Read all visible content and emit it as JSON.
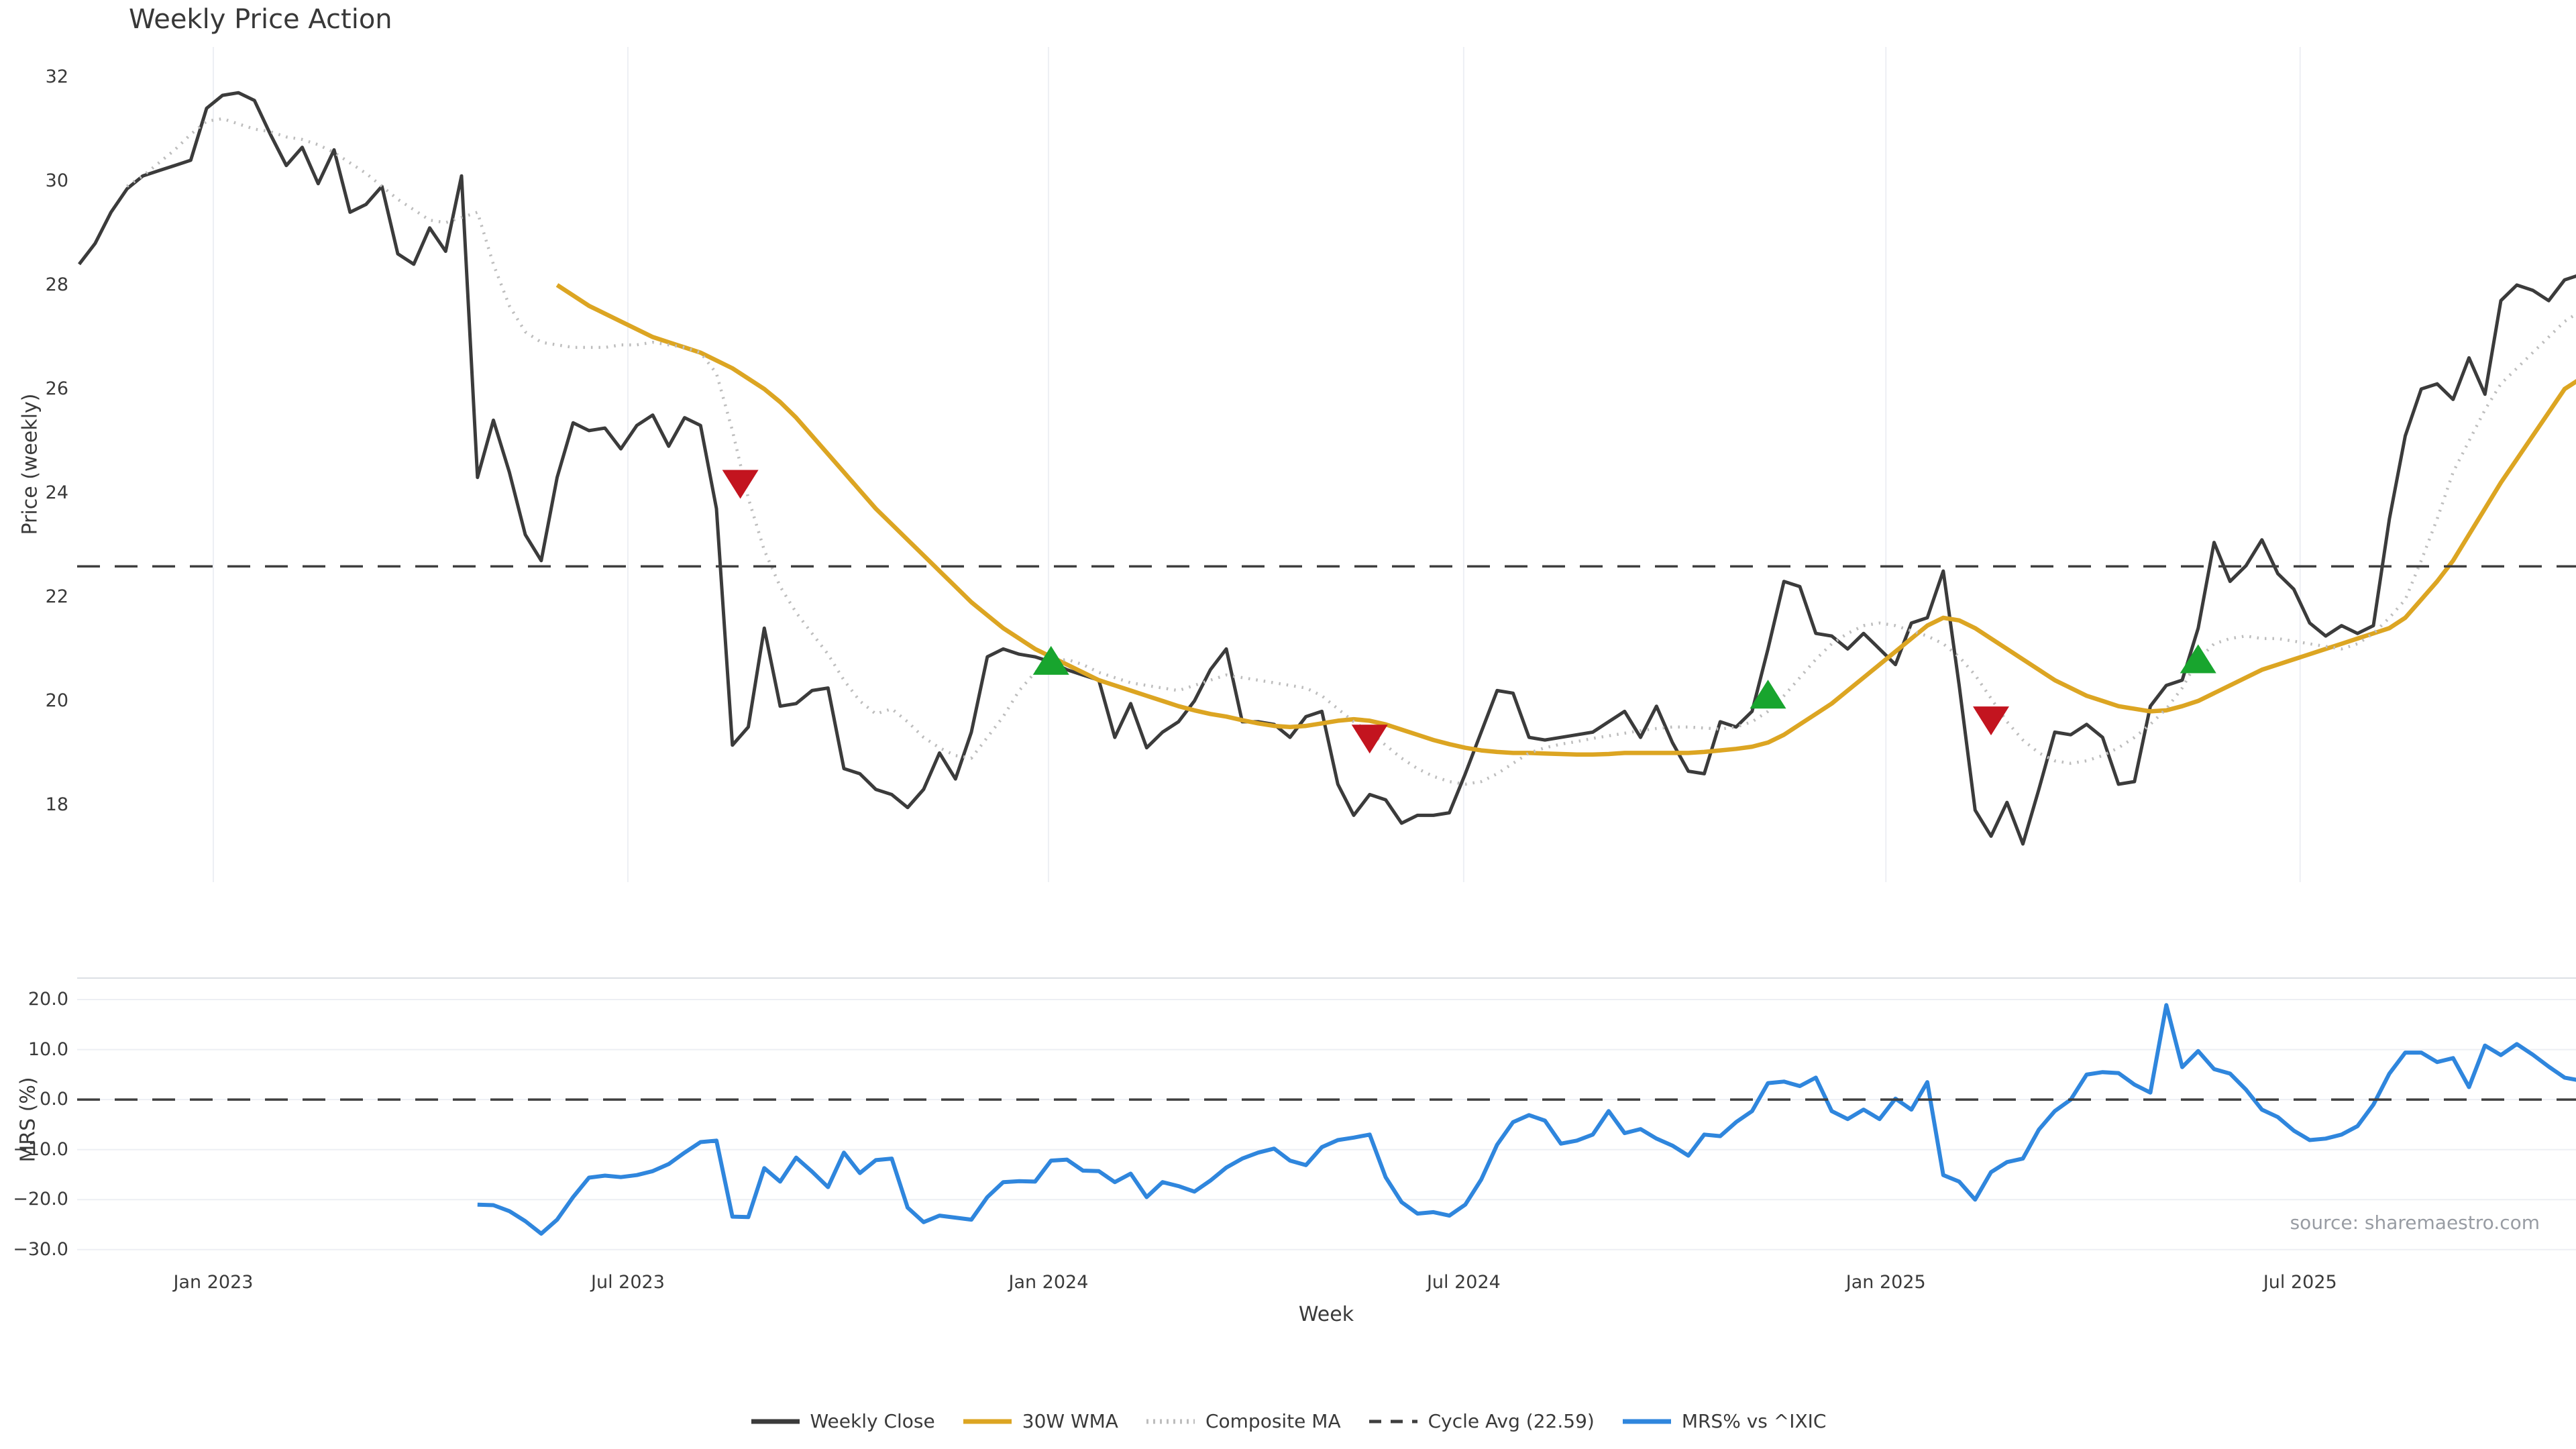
{
  "title": "Weekly Price Action",
  "source": "source: sharemaestro.com",
  "colors": {
    "weekly_close": "#3b3b3b",
    "wma_30w": "#dca522",
    "composite_ma": "#bdbdbd",
    "cycle_avg": "#3f3f3f",
    "mrs": "#2f86dd",
    "buy_marker": "#18a52e",
    "sell_marker": "#c3141f",
    "grid": "#edeff4",
    "mrs_top_border": "#dcdfe4",
    "tick_text": "#3a3a3a",
    "source_text": "#989ca3"
  },
  "legend": {
    "items": [
      {
        "id": "weekly-close",
        "label": "Weekly Close",
        "style": "solid",
        "color": "#3b3b3b"
      },
      {
        "id": "wma-30w",
        "label": "30W WMA",
        "style": "solid",
        "color": "#dca522"
      },
      {
        "id": "composite-ma",
        "label": "Composite MA",
        "style": "dotted",
        "color": "#bdbdbd"
      },
      {
        "id": "cycle-avg",
        "label": "Cycle Avg (22.59)",
        "style": "dashed",
        "color": "#3f3f3f"
      },
      {
        "id": "mrs",
        "label": "MRS% vs ^IXIC",
        "style": "solid",
        "color": "#2f86dd"
      }
    ]
  },
  "x_axis": {
    "label": "Week",
    "week_min": -0.2,
    "week_max": 156.8,
    "ticks": [
      {
        "label": "Jan 2023",
        "week": 8.42
      },
      {
        "label": "Jul 2023",
        "week": 34.44
      },
      {
        "label": "Jan 2024",
        "week": 60.84
      },
      {
        "label": "Jul 2024",
        "week": 86.9
      },
      {
        "label": "Jan 2025",
        "week": 113.4
      },
      {
        "label": "Jul 2025",
        "week": 139.4
      }
    ]
  },
  "chart_data": [
    {
      "type": "line",
      "panel": "price",
      "title": "Weekly Price Action",
      "ylabel": "Price (weekly)",
      "ylim": [
        16.5,
        32.6
      ],
      "grid": "vertical",
      "legend_position": "bottom-center",
      "yticks": [
        {
          "label": "32",
          "value": 32
        },
        {
          "label": "30",
          "value": 30
        },
        {
          "label": "28",
          "value": 28
        },
        {
          "label": "26",
          "value": 26
        },
        {
          "label": "24",
          "value": 24
        },
        {
          "label": "22",
          "value": 22
        },
        {
          "label": "20",
          "value": 20
        },
        {
          "label": "18",
          "value": 18
        }
      ],
      "series": [
        {
          "name": "Weekly Close",
          "color": "#3b3b3b",
          "style": "solid",
          "width": 5,
          "start_week": 0,
          "values": [
            28.4,
            28.8,
            29.4,
            29.85,
            30.1,
            30.2,
            30.3,
            30.4,
            31.4,
            31.65,
            31.7,
            31.55,
            30.9,
            30.3,
            30.65,
            29.95,
            30.6,
            29.4,
            29.55,
            29.9,
            28.6,
            28.4,
            29.1,
            28.65,
            30.1,
            24.3,
            25.4,
            24.4,
            23.2,
            22.7,
            24.3,
            25.35,
            25.2,
            25.25,
            24.85,
            25.3,
            25.5,
            24.9,
            25.45,
            25.3,
            23.7,
            19.15,
            19.5,
            21.4,
            19.9,
            19.95,
            20.2,
            20.25,
            18.7,
            18.6,
            18.3,
            18.2,
            17.95,
            18.3,
            19.0,
            18.5,
            19.4,
            20.85,
            21.0,
            20.9,
            20.85,
            20.75,
            20.6,
            20.5,
            20.4,
            19.3,
            19.95,
            19.1,
            19.4,
            19.6,
            20.0,
            20.6,
            21.0,
            19.6,
            19.6,
            19.55,
            19.3,
            19.7,
            19.8,
            18.4,
            17.8,
            18.2,
            18.1,
            17.65,
            17.8,
            17.8,
            17.85,
            18.6,
            19.4,
            20.2,
            20.15,
            19.3,
            19.25,
            19.3,
            19.35,
            19.4,
            19.6,
            19.8,
            19.3,
            19.9,
            19.2,
            18.65,
            18.6,
            19.6,
            19.5,
            19.8,
            21.0,
            22.3,
            22.2,
            21.3,
            21.25,
            21.0,
            21.3,
            21.0,
            20.7,
            21.5,
            21.6,
            22.5,
            20.3,
            17.9,
            17.4,
            18.05,
            17.25,
            18.3,
            19.4,
            19.35,
            19.55,
            19.3,
            18.4,
            18.45,
            19.9,
            20.3,
            20.4,
            21.4,
            23.05,
            22.3,
            22.6,
            23.1,
            22.45,
            22.15,
            21.5,
            21.25,
            21.45,
            21.3,
            21.45,
            23.5,
            25.1,
            26.0,
            26.1,
            25.8,
            26.6,
            25.9,
            27.7,
            28.0,
            27.9,
            27.7,
            28.1,
            28.2
          ]
        },
        {
          "name": "30W WMA",
          "color": "#dca522",
          "style": "solid",
          "width": 6.5,
          "start_week": 30,
          "values": [
            28.0,
            27.8,
            27.6,
            27.45,
            27.3,
            27.15,
            27.0,
            26.9,
            26.8,
            26.7,
            26.55,
            26.4,
            26.2,
            26.0,
            25.75,
            25.45,
            25.1,
            24.75,
            24.4,
            24.05,
            23.7,
            23.4,
            23.1,
            22.8,
            22.5,
            22.2,
            21.9,
            21.65,
            21.4,
            21.2,
            21.0,
            20.85,
            20.7,
            20.55,
            20.4,
            20.3,
            20.2,
            20.1,
            20.0,
            19.9,
            19.82,
            19.75,
            19.7,
            19.63,
            19.57,
            19.52,
            19.5,
            19.52,
            19.57,
            19.62,
            19.65,
            19.62,
            19.55,
            19.45,
            19.35,
            19.25,
            19.17,
            19.1,
            19.05,
            19.02,
            19.0,
            19.0,
            18.99,
            18.98,
            18.97,
            18.97,
            18.98,
            19.0,
            19.0,
            19.0,
            19.0,
            19.0,
            19.02,
            19.05,
            19.08,
            19.12,
            19.2,
            19.35,
            19.55,
            19.75,
            19.95,
            20.2,
            20.45,
            20.7,
            20.95,
            21.2,
            21.45,
            21.6,
            21.55,
            21.4,
            21.2,
            21.0,
            20.8,
            20.6,
            20.4,
            20.25,
            20.1,
            20.0,
            19.9,
            19.85,
            19.8,
            19.82,
            19.9,
            20.0,
            20.15,
            20.3,
            20.45,
            20.6,
            20.7,
            20.8,
            20.9,
            21.0,
            21.1,
            21.2,
            21.3,
            21.4,
            21.6,
            21.95,
            22.3,
            22.7,
            23.2,
            23.7,
            24.2,
            24.65,
            25.1,
            25.55,
            26.0,
            26.2
          ]
        },
        {
          "name": "Composite MA",
          "color": "#bdbdbd",
          "style": "dotted",
          "width": 4.5,
          "start_week": 3,
          "values": [
            29.9,
            30.1,
            30.35,
            30.6,
            30.9,
            31.15,
            31.2,
            31.1,
            31.0,
            30.95,
            30.85,
            30.8,
            30.7,
            30.55,
            30.35,
            30.15,
            29.9,
            29.65,
            29.45,
            29.25,
            29.2,
            29.3,
            29.4,
            28.4,
            27.6,
            27.1,
            26.9,
            26.85,
            26.8,
            26.8,
            26.8,
            26.85,
            26.85,
            26.9,
            26.85,
            26.8,
            26.7,
            26.3,
            25.2,
            23.9,
            22.9,
            22.2,
            21.7,
            21.3,
            20.9,
            20.4,
            20.0,
            19.75,
            19.85,
            19.6,
            19.3,
            19.1,
            18.95,
            18.9,
            19.3,
            19.7,
            20.2,
            20.55,
            20.75,
            20.8,
            20.7,
            20.55,
            20.45,
            20.35,
            20.3,
            20.25,
            20.2,
            20.3,
            20.4,
            20.5,
            20.45,
            20.4,
            20.35,
            20.3,
            20.25,
            20.1,
            19.85,
            19.6,
            19.4,
            19.15,
            18.9,
            18.7,
            18.55,
            18.45,
            18.4,
            18.45,
            18.6,
            18.8,
            19.0,
            19.1,
            19.17,
            19.22,
            19.28,
            19.33,
            19.38,
            19.43,
            19.47,
            19.5,
            19.5,
            19.48,
            19.46,
            19.5,
            19.6,
            19.8,
            20.1,
            20.45,
            20.8,
            21.1,
            21.3,
            21.45,
            21.5,
            21.45,
            21.35,
            21.25,
            21.1,
            20.85,
            20.5,
            20.05,
            19.6,
            19.25,
            19.0,
            18.85,
            18.8,
            18.85,
            18.95,
            19.1,
            19.3,
            19.55,
            19.85,
            20.25,
            20.8,
            21.1,
            21.2,
            21.25,
            21.2,
            21.2,
            21.15,
            21.1,
            21.05,
            21.0,
            21.1,
            21.3,
            21.6,
            21.95,
            22.7,
            23.5,
            24.4,
            25.0,
            25.6,
            26.1,
            26.4,
            26.7,
            27.0,
            27.3,
            27.5
          ]
        },
        {
          "name": "Cycle Avg",
          "color": "#3f3f3f",
          "style": "dashed",
          "width": 3.5,
          "constant": 22.59
        }
      ],
      "markers": {
        "buy": {
          "shape": "triangle-up",
          "color": "#18a52e",
          "points": [
            {
              "week": 61,
              "price": 20.75
            },
            {
              "week": 106,
              "price": 20.1
            },
            {
              "week": 133,
              "price": 20.78
            }
          ]
        },
        "sell": {
          "shape": "triangle-down",
          "color": "#c3141f",
          "points": [
            {
              "week": 41.5,
              "price": 24.2
            },
            {
              "week": 81,
              "price": 19.3
            },
            {
              "week": 120,
              "price": 19.65
            }
          ]
        }
      }
    },
    {
      "type": "line",
      "panel": "mrs",
      "ylabel": "MRS (%)",
      "xlabel": "Week",
      "ylim": [
        -32.3,
        24.3
      ],
      "grid": "horizontal",
      "yticks": [
        {
          "label": "20.0",
          "value": 20
        },
        {
          "label": "10.0",
          "value": 10
        },
        {
          "label": "0.0",
          "value": 0
        },
        {
          "label": "−10.0",
          "value": -10
        },
        {
          "label": "−20.0",
          "value": -20
        },
        {
          "label": "−30.0",
          "value": -30
        }
      ],
      "series": [
        {
          "name": "MRS% vs ^IXIC",
          "color": "#2f86dd",
          "style": "solid",
          "width": 6,
          "start_week": 25,
          "values": [
            -21.0,
            -21.1,
            -22.3,
            -24.3,
            -26.8,
            -24.0,
            -19.5,
            -15.6,
            -15.2,
            -15.5,
            -15.1,
            -14.3,
            -12.9,
            -10.6,
            -8.5,
            -8.2,
            -23.4,
            -23.5,
            -13.7,
            -16.4,
            -11.6,
            -14.4,
            -17.5,
            -10.6,
            -14.7,
            -12.1,
            -11.8,
            -21.6,
            -24.5,
            -23.2,
            -23.6,
            -24.0,
            -19.5,
            -16.5,
            -16.3,
            -16.4,
            -12.2,
            -12.0,
            -14.2,
            -14.3,
            -16.5,
            -14.8,
            -19.5,
            -16.5,
            -17.3,
            -18.4,
            -16.2,
            -13.6,
            -11.8,
            -10.6,
            -9.8,
            -12.2,
            -13.1,
            -9.5,
            -8.1,
            -7.6,
            -7.0,
            -15.5,
            -20.5,
            -22.8,
            -22.5,
            -23.2,
            -21.0,
            -16.0,
            -9.0,
            -4.5,
            -3.1,
            -4.2,
            -8.8,
            -8.2,
            -7.0,
            -2.3,
            -6.7,
            -5.9,
            -7.8,
            -9.2,
            -11.2,
            -7.0,
            -7.3,
            -4.5,
            -2.3,
            3.3,
            3.6,
            2.7,
            4.4,
            -2.3,
            -3.9,
            -2.0,
            -3.9,
            0.2,
            -2.0,
            3.5,
            -15.1,
            -16.4,
            -20.0,
            -14.5,
            -12.5,
            -11.8,
            -6.0,
            -2.3,
            0.0,
            5.0,
            5.5,
            5.3,
            3.0,
            1.4,
            18.9,
            6.5,
            9.7,
            6.1,
            5.2,
            2.0,
            -2.0,
            -3.5,
            -6.2,
            -8.1,
            -7.8,
            -7.0,
            -5.3,
            -1.0,
            5.2,
            9.4,
            9.4,
            7.5,
            8.3,
            2.5,
            10.8,
            8.9,
            11.1,
            9.0,
            6.6,
            4.4,
            3.8
          ]
        },
        {
          "name": "Zero Line",
          "color": "#3f3f3f",
          "style": "dashed",
          "width": 3.5,
          "constant": 0
        }
      ]
    }
  ]
}
